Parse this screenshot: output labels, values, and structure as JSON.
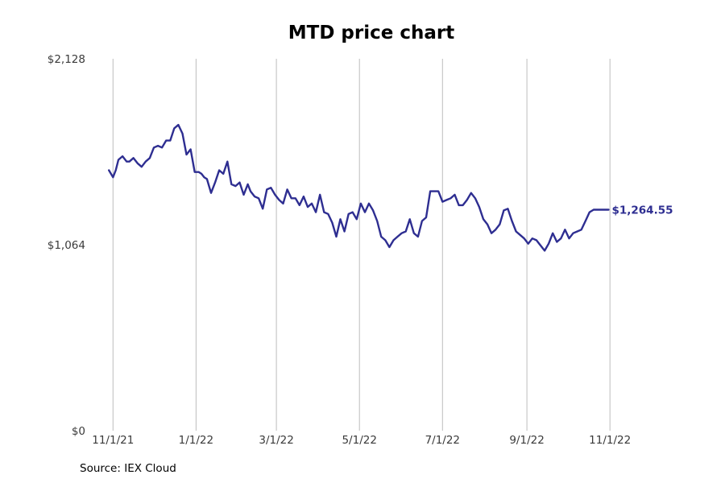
{
  "chart_data": {
    "type": "line",
    "title": "MTD price chart",
    "xlabel": "",
    "ylabel": "",
    "x_ticks": [
      "2021-11-01",
      "2022-01-01",
      "2022-03-01",
      "2022-05-01",
      "2022-07-01",
      "2022-09-01",
      "2022-11-01"
    ],
    "x_tick_labels": [
      "11/1/21",
      "1/1/22",
      "3/1/22",
      "5/1/22",
      "7/1/22",
      "9/1/22",
      "11/1/22"
    ],
    "y_ticks": [
      0,
      1064,
      2128
    ],
    "y_tick_labels": [
      "$0",
      "$1,064",
      "$2,128"
    ],
    "ylim": [
      0,
      2128
    ],
    "xlim": [
      "2021-10-20",
      "2022-12-20"
    ],
    "grid": "vertical",
    "legend": "none",
    "line_color": "#2e2e91",
    "end_label": "$1,264.55",
    "series": [
      {
        "x": [
          "2021-10-29",
          "2021-11-01",
          "2021-11-03",
          "2021-11-05",
          "2021-11-08",
          "2021-11-11",
          "2021-11-13",
          "2021-11-16",
          "2021-11-19",
          "2021-11-22",
          "2021-11-25",
          "2021-11-28",
          "2021-12-01",
          "2021-12-04",
          "2021-12-07",
          "2021-12-10",
          "2021-12-13",
          "2021-12-16",
          "2021-12-19",
          "2021-12-22",
          "2021-12-25",
          "2021-12-28",
          "2021-12-31",
          "2022-01-03",
          "2022-01-05",
          "2022-01-07",
          "2022-01-09",
          "2022-01-12",
          "2022-01-15",
          "2022-01-18",
          "2022-01-21",
          "2022-01-24",
          "2022-01-27",
          "2022-01-30",
          "2022-02-02",
          "2022-02-05",
          "2022-02-08",
          "2022-02-10",
          "2022-02-13",
          "2022-02-16",
          "2022-02-19",
          "2022-02-22",
          "2022-02-25",
          "2022-02-28",
          "2022-03-03",
          "2022-03-06",
          "2022-03-09",
          "2022-03-12",
          "2022-03-15",
          "2022-03-18",
          "2022-03-21",
          "2022-03-24",
          "2022-03-27",
          "2022-03-30",
          "2022-04-02",
          "2022-04-05",
          "2022-04-08",
          "2022-04-11",
          "2022-04-14",
          "2022-04-17",
          "2022-04-20",
          "2022-04-23",
          "2022-04-26",
          "2022-04-29",
          "2022-05-02",
          "2022-05-05",
          "2022-05-08",
          "2022-05-11",
          "2022-05-14",
          "2022-05-17",
          "2022-05-20",
          "2022-05-23",
          "2022-05-26",
          "2022-05-29",
          "2022-06-01",
          "2022-06-04",
          "2022-06-07",
          "2022-06-10",
          "2022-06-13",
          "2022-06-16",
          "2022-06-19",
          "2022-06-22",
          "2022-06-25",
          "2022-06-28",
          "2022-07-01",
          "2022-07-04",
          "2022-07-07",
          "2022-07-10",
          "2022-07-13",
          "2022-07-16",
          "2022-07-19",
          "2022-07-22",
          "2022-07-25",
          "2022-07-28",
          "2022-07-31",
          "2022-08-03",
          "2022-08-06",
          "2022-08-09",
          "2022-08-12",
          "2022-08-15",
          "2022-08-18",
          "2022-08-21",
          "2022-08-24",
          "2022-08-27",
          "2022-08-30",
          "2022-09-02",
          "2022-09-05",
          "2022-09-08",
          "2022-09-11",
          "2022-09-14",
          "2022-09-17",
          "2022-09-20",
          "2022-09-23",
          "2022-09-26",
          "2022-09-29",
          "2022-10-02",
          "2022-10-05",
          "2022-10-08",
          "2022-10-11",
          "2022-10-14",
          "2022-10-17",
          "2022-10-20",
          "2022-10-23",
          "2022-10-26",
          "2022-10-29",
          "2022-10-31"
        ],
        "values": [
          1490,
          1450,
          1490,
          1550,
          1570,
          1540,
          1540,
          1560,
          1530,
          1510,
          1540,
          1560,
          1620,
          1630,
          1620,
          1660,
          1660,
          1730,
          1750,
          1700,
          1580,
          1610,
          1480,
          1480,
          1470,
          1450,
          1440,
          1360,
          1420,
          1490,
          1470,
          1540,
          1410,
          1400,
          1420,
          1350,
          1410,
          1370,
          1340,
          1330,
          1270,
          1380,
          1390,
          1350,
          1320,
          1300,
          1380,
          1330,
          1330,
          1290,
          1340,
          1280,
          1300,
          1250,
          1350,
          1250,
          1240,
          1190,
          1110,
          1210,
          1140,
          1240,
          1250,
          1210,
          1300,
          1250,
          1300,
          1260,
          1200,
          1110,
          1090,
          1050,
          1090,
          1110,
          1130,
          1140,
          1210,
          1130,
          1110,
          1200,
          1220,
          1370,
          1370,
          1370,
          1310,
          1320,
          1330,
          1350,
          1290,
          1290,
          1320,
          1360,
          1330,
          1280,
          1210,
          1180,
          1130,
          1150,
          1180,
          1260,
          1270,
          1200,
          1140,
          1120,
          1100,
          1070,
          1100,
          1090,
          1060,
          1030,
          1070,
          1130,
          1080,
          1100,
          1150,
          1100,
          1130,
          1140,
          1150,
          1200,
          1250,
          1264.55,
          1264.55,
          1264.55,
          1264.55,
          1264.55
        ]
      }
    ]
  },
  "footer": {
    "source": "Source: IEX Cloud"
  }
}
